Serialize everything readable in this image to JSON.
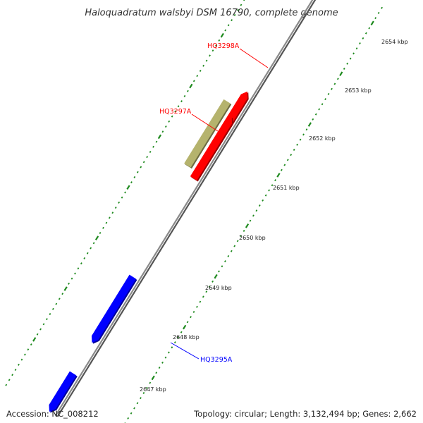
{
  "title": "Haloquadratum walsbyi DSM 16790, complete genome",
  "footer": {
    "accession": "Accession: NC_008212",
    "topology": "Topology: circular; Length: 3,132,494 bp; Genes: 2,662"
  },
  "colors": {
    "backbone": "#8a8a8a",
    "tick": "#1e8a1e",
    "forward_gene": "#ff0000",
    "reverse_gene": "#0000ff",
    "rna_gene": "#b5b36d"
  },
  "kbp_labels": [
    "2647 kbp",
    "2648 kbp",
    "2649 kbp",
    "2650 kbp",
    "2651 kbp",
    "2652 kbp",
    "2653 kbp",
    "2654 kbp"
  ],
  "gene_labels": [
    {
      "name": "HQ3298A",
      "color": "#ff0000"
    },
    {
      "name": "HQ3297A",
      "color": "#ff0000"
    },
    {
      "name": "HQ3295A",
      "color": "#0000ff"
    }
  ]
}
